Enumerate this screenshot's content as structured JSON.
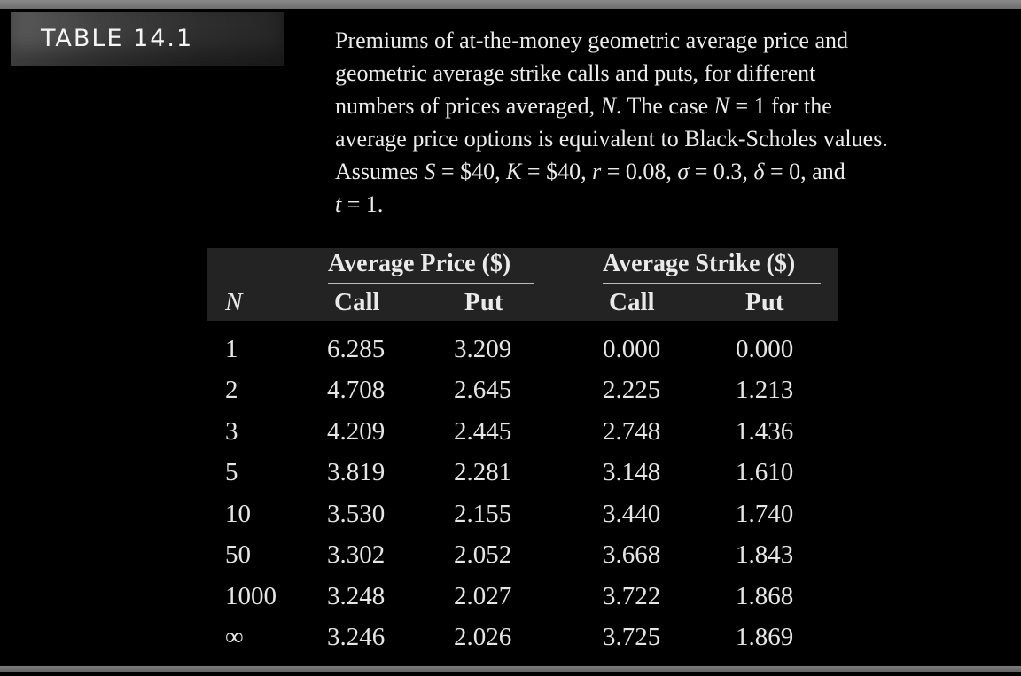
{
  "label": "TABLE 14.1",
  "caption": {
    "l1": "Premiums of at-the-money geometric average price and",
    "l2": "geometric average strike calls and puts, for different",
    "l3_a": "numbers of prices averaged, ",
    "l3_n": "N",
    "l3_b": ". The case ",
    "l3_n2": "N",
    "l3_c": " = 1 for the",
    "l4": "average price options is equivalent to Black-Scholes values.",
    "l5_a": "Assumes ",
    "l5_s": "S",
    "l5_b": " = $40, ",
    "l5_k": "K",
    "l5_c": " = $40, ",
    "l5_r": "r",
    "l5_d": " = 0.08, ",
    "l5_sig": "σ",
    "l5_e": " = 0.3, ",
    "l5_del": "δ",
    "l5_f": " = 0, and",
    "l6_t": "t",
    "l6_a": " = 1."
  },
  "table": {
    "group_price": "Average Price ($)",
    "group_strike": "Average Strike ($)",
    "col_n": "N",
    "col_price_call": "Call",
    "col_price_put": "Put",
    "col_strike_call": "Call",
    "col_strike_put": "Put",
    "rows": [
      [
        "1",
        "6.285",
        "3.209",
        "0.000",
        "0.000"
      ],
      [
        "2",
        "4.708",
        "2.645",
        "2.225",
        "1.213"
      ],
      [
        "3",
        "4.209",
        "2.445",
        "2.748",
        "1.436"
      ],
      [
        "5",
        "3.819",
        "2.281",
        "3.148",
        "1.610"
      ],
      [
        "10",
        "3.530",
        "2.155",
        "3.440",
        "1.740"
      ],
      [
        "50",
        "3.302",
        "2.052",
        "3.668",
        "1.843"
      ],
      [
        "1000",
        "3.248",
        "2.027",
        "3.722",
        "1.868"
      ],
      [
        "∞",
        "3.246",
        "2.026",
        "3.725",
        "1.869"
      ]
    ]
  }
}
